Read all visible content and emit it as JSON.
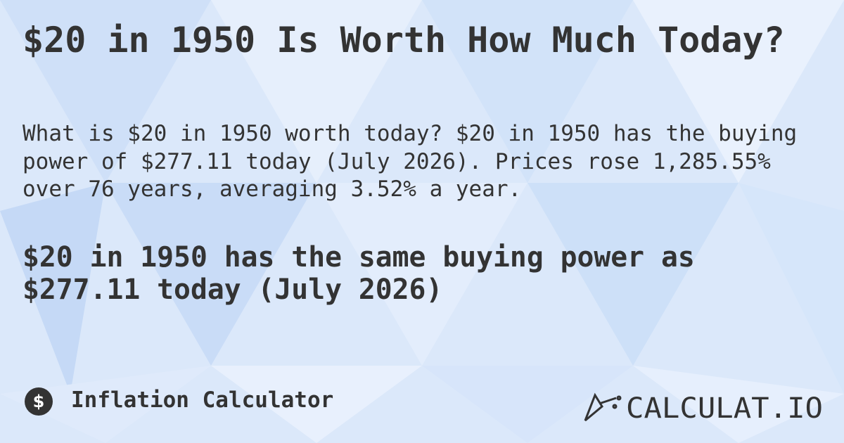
{
  "title": "$20 in 1950 Is Worth How Much Today?",
  "paragraph": [
    "What is $20 in 1950 worth today? $20 in 1950 has the buying",
    "power of $277.11 today (July 2026). Prices rose 1,285.55%",
    "over 76 years, averaging 3.52% a year."
  ],
  "highlight": [
    "$20 in 1950 has the same buying power as",
    "$277.11 today (July 2026)"
  ],
  "footer": {
    "icon": "$",
    "category": "Inflation Calculator",
    "logo": "CALCULAT.IO"
  }
}
